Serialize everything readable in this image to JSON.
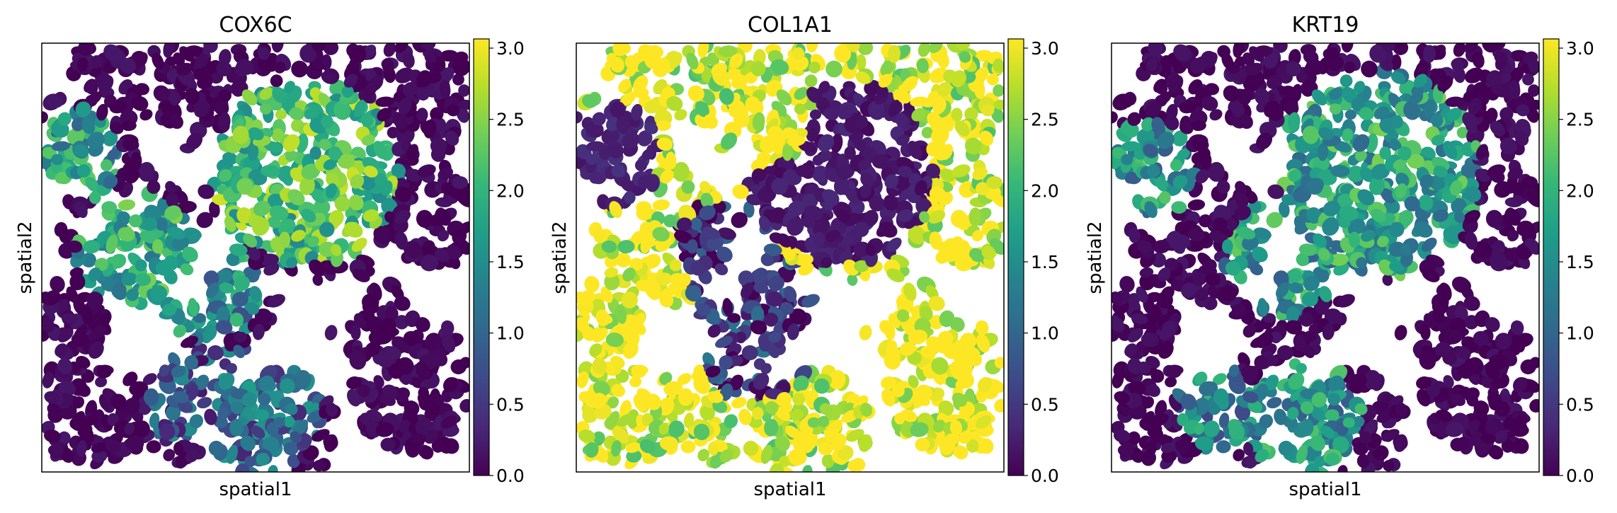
{
  "chart_data": [
    {
      "type": "scatter",
      "title": "COX6C",
      "xlabel": "spatial1",
      "ylabel": "spatial2",
      "colormap": "viridis",
      "clim": [
        0.0,
        3.0
      ],
      "colorbar_ticks": [
        "0.0",
        "0.5",
        "1.0",
        "1.5",
        "2.0",
        "2.5",
        "3.0"
      ],
      "regions": [
        {
          "x": 0.62,
          "y": 0.3,
          "r": 0.22,
          "value": 2.1
        },
        {
          "x": 0.08,
          "y": 0.26,
          "r": 0.11,
          "value": 1.6
        },
        {
          "x": 0.4,
          "y": 0.58,
          "r": 0.12,
          "value": 1.4
        },
        {
          "x": 0.22,
          "y": 0.48,
          "r": 0.14,
          "value": 1.8
        },
        {
          "x": 0.5,
          "y": 0.85,
          "r": 0.16,
          "value": 1.0
        },
        {
          "x": 0.35,
          "y": 0.82,
          "r": 0.12,
          "value": 0.8
        }
      ],
      "base_value": 0.05
    },
    {
      "type": "scatter",
      "title": "COL1A1",
      "xlabel": "spatial1",
      "ylabel": "spatial2",
      "colormap": "viridis",
      "clim": [
        0.0,
        3.0
      ],
      "colorbar_ticks": [
        "0.0",
        "0.5",
        "1.0",
        "1.5",
        "2.0",
        "2.5",
        "3.0"
      ],
      "regions": [
        {
          "x": 0.62,
          "y": 0.3,
          "r": 0.22,
          "value": 0.2
        },
        {
          "x": 0.08,
          "y": 0.26,
          "r": 0.12,
          "value": 0.3
        },
        {
          "x": 0.35,
          "y": 0.48,
          "r": 0.12,
          "value": 0.4
        },
        {
          "x": 0.4,
          "y": 0.65,
          "r": 0.18,
          "value": 0.5
        },
        {
          "x": 0.85,
          "y": 0.75,
          "r": 0.25,
          "value": 3.0
        },
        {
          "x": 0.15,
          "y": 0.7,
          "r": 0.2,
          "value": 3.0
        },
        {
          "x": 0.48,
          "y": 0.2,
          "r": 0.12,
          "value": 3.0
        }
      ],
      "base_value": 2.8
    },
    {
      "type": "scatter",
      "title": "KRT19",
      "xlabel": "spatial1",
      "ylabel": "spatial2",
      "colormap": "viridis",
      "clim": [
        0.0,
        3.0
      ],
      "colorbar_ticks": [
        "0.0",
        "0.5",
        "1.0",
        "1.5",
        "2.0",
        "2.5",
        "3.0"
      ],
      "regions": [
        {
          "x": 0.62,
          "y": 0.3,
          "r": 0.24,
          "value": 1.7
        },
        {
          "x": 0.08,
          "y": 0.3,
          "r": 0.12,
          "value": 1.5
        },
        {
          "x": 0.4,
          "y": 0.5,
          "r": 0.14,
          "value": 1.6
        },
        {
          "x": 0.45,
          "y": 0.88,
          "r": 0.14,
          "value": 1.5
        },
        {
          "x": 0.25,
          "y": 0.85,
          "r": 0.1,
          "value": 1.3
        }
      ],
      "base_value": 0.05
    }
  ]
}
